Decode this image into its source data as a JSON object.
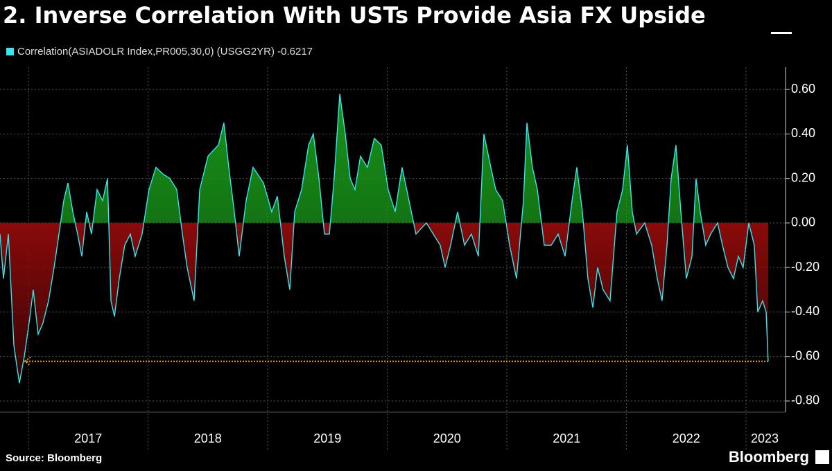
{
  "chart_data": {
    "type": "area-line",
    "title": "2. Inverse Correlation With USTs Provide Asia FX Upside",
    "source": "Source: Bloomberg",
    "brand": "Bloomberg",
    "x": [
      2016.762,
      2016.791,
      2016.832,
      2016.878,
      2016.924,
      2016.965,
      2017.005,
      2017.04,
      2017.081,
      2017.121,
      2017.168,
      2017.214,
      2017.255,
      2017.295,
      2017.33,
      2017.371,
      2017.411,
      2017.446,
      2017.487,
      2017.527,
      2017.574,
      2017.62,
      2017.661,
      2017.69,
      2017.719,
      2017.759,
      2017.805,
      2017.852,
      2017.892,
      2017.95,
      2018.008,
      2018.066,
      2018.124,
      2018.182,
      2018.24,
      2018.287,
      2018.327,
      2018.385,
      2018.432,
      2018.501,
      2018.588,
      2018.634,
      2018.675,
      2018.721,
      2018.762,
      2018.82,
      2018.878,
      2018.965,
      2019.034,
      2019.081,
      2019.139,
      2019.185,
      2019.226,
      2019.284,
      2019.342,
      2019.382,
      2019.429,
      2019.475,
      2019.516,
      2019.556,
      2019.603,
      2019.649,
      2019.69,
      2019.73,
      2019.776,
      2019.834,
      2019.892,
      2019.95,
      2020.008,
      2020.066,
      2020.124,
      2020.182,
      2020.24,
      2020.327,
      2020.385,
      2020.443,
      2020.484,
      2020.53,
      2020.588,
      2020.646,
      2020.704,
      2020.762,
      2020.808,
      2020.866,
      2020.907,
      2020.965,
      2021.023,
      2021.081,
      2021.139,
      2021.168,
      2021.214,
      2021.255,
      2021.313,
      2021.371,
      2021.429,
      2021.487,
      2021.545,
      2021.585,
      2021.632,
      2021.678,
      2021.719,
      2021.759,
      2021.805,
      2021.863,
      2021.921,
      2021.968,
      2022.008,
      2022.049,
      2022.084,
      2022.153,
      2022.211,
      2022.258,
      2022.298,
      2022.339,
      2022.374,
      2022.414,
      2022.455,
      2022.501,
      2022.548,
      2022.582,
      2022.617,
      2022.663,
      2022.704,
      2022.762,
      2022.803,
      2022.849,
      2022.895,
      2022.936,
      2022.976,
      2023.023,
      2023.069,
      2023.098,
      2023.139,
      2023.168,
      2023.185
    ],
    "series": [
      {
        "name": "Correlation(ASIADOLR Index,PR005,30,0) (USGG2YR) -0.6217",
        "color": "#33e6f0",
        "values": [
          -0.05,
          -0.25,
          -0.05,
          -0.55,
          -0.72,
          -0.6,
          -0.45,
          -0.3,
          -0.5,
          -0.45,
          -0.35,
          -0.2,
          -0.05,
          0.1,
          0.18,
          0.05,
          -0.05,
          -0.15,
          0.05,
          -0.05,
          0.15,
          0.1,
          0.2,
          -0.35,
          -0.42,
          -0.25,
          -0.1,
          -0.05,
          -0.15,
          -0.05,
          0.15,
          0.25,
          0.22,
          0.2,
          0.15,
          -0.05,
          -0.2,
          -0.35,
          0.15,
          0.3,
          0.35,
          0.45,
          0.25,
          0.05,
          -0.15,
          0.1,
          0.25,
          0.18,
          0.05,
          0.12,
          -0.15,
          -0.3,
          0.05,
          0.15,
          0.35,
          0.4,
          0.2,
          -0.05,
          -0.05,
          0.2,
          0.58,
          0.4,
          0.2,
          0.15,
          0.3,
          0.25,
          0.38,
          0.35,
          0.15,
          0.05,
          0.25,
          0.1,
          -0.05,
          0.0,
          -0.05,
          -0.1,
          -0.2,
          -0.1,
          0.05,
          -0.1,
          -0.05,
          -0.15,
          0.4,
          0.25,
          0.15,
          0.1,
          -0.1,
          -0.25,
          0.1,
          0.45,
          0.25,
          0.15,
          -0.1,
          -0.1,
          -0.05,
          -0.15,
          0.1,
          0.25,
          0.05,
          -0.25,
          -0.38,
          -0.2,
          -0.3,
          -0.35,
          0.05,
          0.15,
          0.35,
          0.05,
          -0.05,
          0.0,
          -0.1,
          -0.25,
          -0.35,
          -0.1,
          0.2,
          0.35,
          0.05,
          -0.25,
          -0.15,
          0.2,
          0.05,
          -0.1,
          -0.05,
          0.0,
          -0.1,
          -0.2,
          -0.25,
          -0.15,
          -0.2,
          0.0,
          -0.1,
          -0.4,
          -0.35,
          -0.4,
          -0.6217
        ]
      }
    ],
    "xlim": [
      2016.762,
      2023.313
    ],
    "xticks": [
      {
        "value": 2017,
        "label": "2017"
      },
      {
        "value": 2018,
        "label": "2018"
      },
      {
        "value": 2019,
        "label": "2019"
      },
      {
        "value": 2020,
        "label": "2020"
      },
      {
        "value": 2021,
        "label": "2021"
      },
      {
        "value": 2022,
        "label": "2022"
      },
      {
        "value": 2023,
        "label": "2023"
      }
    ],
    "ylim": [
      -0.85,
      0.7
    ],
    "yticks": [
      {
        "value": 0.6,
        "label": "0.60"
      },
      {
        "value": 0.4,
        "label": "0.40"
      },
      {
        "value": 0.2,
        "label": "0.20"
      },
      {
        "value": 0,
        "label": "0.00"
      },
      {
        "value": -0.2,
        "label": "-0.20"
      },
      {
        "value": -0.4,
        "label": "-0.40"
      },
      {
        "value": -0.6,
        "label": "-0.60"
      },
      {
        "value": -0.8,
        "label": "-0.80"
      }
    ],
    "positive_color": "#1a9a1a",
    "negative_color": "#8a0a0a",
    "grid": true
  }
}
